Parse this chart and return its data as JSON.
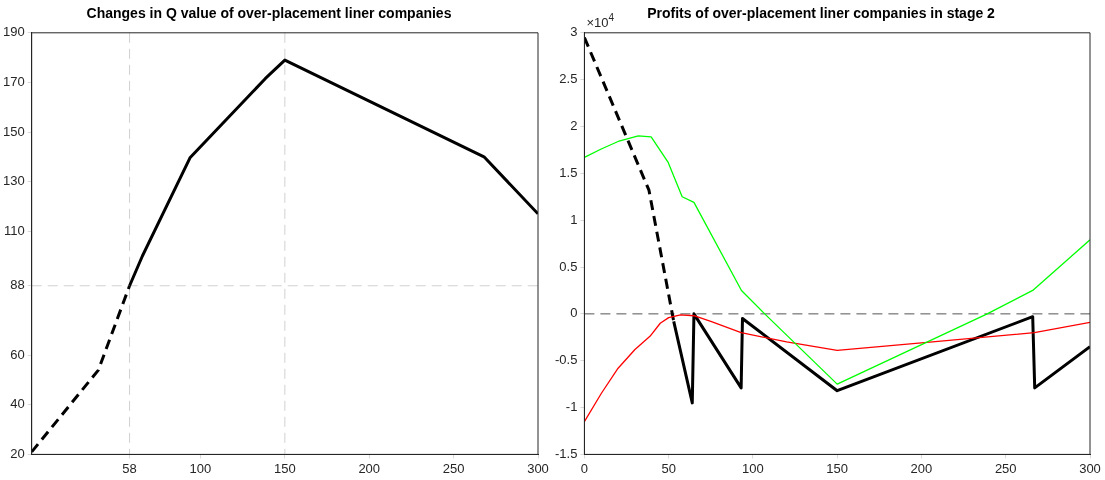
{
  "chart_data": [
    {
      "type": "line",
      "title": "Changes in Q value of over-placement liner companies",
      "marker": "none",
      "xlim": [
        0,
        300
      ],
      "xticks": [
        58,
        100,
        150,
        200,
        250,
        300
      ],
      "ylim": [
        20,
        190
      ],
      "yticks": [
        20,
        40,
        60,
        88,
        110,
        130,
        150,
        170,
        190
      ],
      "grid": false,
      "legend": false,
      "series": [
        {
          "color": "#000000",
          "line_style": "dashed",
          "x": [
            0,
            39.5,
            58
          ],
          "values": [
            21,
            54,
            88
          ]
        },
        {
          "color": "#000000",
          "line_style": "solid",
          "x": [
            58,
            65.6,
            93.8,
            138.5,
            150,
            268,
            300
          ],
          "values": [
            88,
            100,
            139.6,
            171.6,
            179,
            140,
            117
          ]
        }
      ],
      "ref_lines": [
        {
          "axis": "x",
          "value": 58,
          "color": "#d0d0d0",
          "line_style": "dashed"
        },
        {
          "axis": "y",
          "value": 88,
          "color": "#d0d0d0",
          "line_style": "dashed"
        },
        {
          "axis": "x",
          "value": 150,
          "color": "#d0d0d0",
          "line_style": "dashed"
        }
      ]
    },
    {
      "type": "line",
      "title": "Profits of over-placement liner companies in stage 2",
      "marker": "none",
      "annotations": [
        "×10$^{4}$"
      ],
      "xlim": [
        0,
        300
      ],
      "xticks": [
        0,
        50,
        100,
        150,
        200,
        250,
        300
      ],
      "ylim": [
        -1.5,
        3
      ],
      "yticks": [
        -1.5,
        -1,
        -0.5,
        0,
        0.5,
        1,
        1.5,
        2,
        2.5,
        3
      ],
      "grid": false,
      "legend": false,
      "series": [
        {
          "color": "#00ff00",
          "line_style": "solid",
          "x": [
            0,
            10,
            20,
            32,
            39.6,
            49.6,
            58,
            65,
            93.2,
            107,
            150,
            239,
            266,
            300
          ],
          "values": [
            1.67,
            1.76,
            1.84,
            1.9,
            1.89,
            1.62,
            1.25,
            1.19,
            0.25,
            0,
            -0.75,
            0,
            0.25,
            0.79
          ]
        },
        {
          "color": "#ff0000",
          "line_style": "solid",
          "x": [
            0,
            10,
            20,
            30,
            38.9,
            45,
            50,
            57,
            65,
            75,
            93,
            120,
            150,
            200,
            267,
            300
          ],
          "values": [
            -1.15,
            -0.85,
            -0.58,
            -0.38,
            -0.24,
            -0.1,
            -0.04,
            -0.01,
            -0.02,
            -0.08,
            -0.2,
            -0.3,
            -0.39,
            -0.31,
            -0.2,
            -0.09
          ]
        },
        {
          "color": "#000000",
          "line_style": "dashed",
          "x": [
            0,
            38.3,
            53
          ],
          "values": [
            2.95,
            1.32,
            -0.08
          ]
        },
        {
          "color": "#000000",
          "line_style": "solid",
          "x": [
            53,
            64,
            65,
            93,
            93.8,
            150,
            266,
            267.2,
            300
          ],
          "values": [
            -0.08,
            -0.95,
            0,
            -0.79,
            -0.05,
            -0.82,
            -0.03,
            -0.79,
            -0.35
          ]
        }
      ],
      "ref_lines": [
        {
          "axis": "y",
          "value": 0,
          "color": "#555555",
          "line_style": "dashed"
        }
      ]
    }
  ]
}
